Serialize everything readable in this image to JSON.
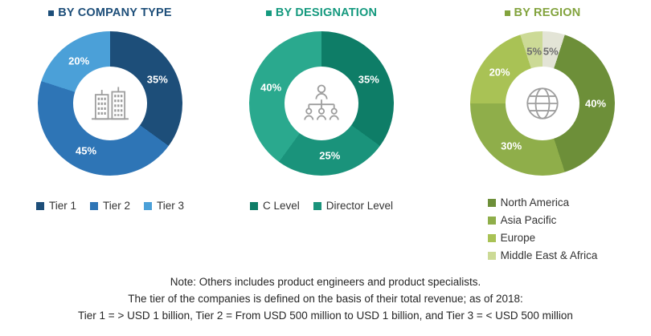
{
  "chart_data": [
    {
      "type": "pie",
      "variant": "donut",
      "title": "BY COMPANY TYPE",
      "title_color": "#1d4e79",
      "center_icon": "buildings-icon",
      "unit": "%",
      "slices": [
        {
          "label": "Tier 1",
          "value": 35,
          "color": "#1d4e79"
        },
        {
          "label": "Tier 2",
          "value": 45,
          "color": "#2e75b6"
        },
        {
          "label": "Tier 3",
          "value": 20,
          "color": "#4ba0d8"
        }
      ],
      "legend": [
        {
          "label": "Tier 1",
          "color": "#1d4e79"
        },
        {
          "label": "Tier 2",
          "color": "#2e75b6"
        },
        {
          "label": "Tier 3",
          "color": "#4ba0d8"
        }
      ],
      "legend_layout": "horizontal"
    },
    {
      "type": "pie",
      "variant": "donut",
      "title": "BY DESIGNATION",
      "title_color": "#14997e",
      "center_icon": "org-chart-icon",
      "unit": "%",
      "slices": [
        {
          "label": "C Level",
          "value": 35,
          "color": "#0e7d67"
        },
        {
          "label": "Director Level",
          "value": 25,
          "color": "#1a937b"
        },
        {
          "label": "Others",
          "value": 40,
          "color": "#2aa98e"
        }
      ],
      "legend": [
        {
          "label": "C Level",
          "color": "#0e7d67"
        },
        {
          "label": "Director Level",
          "color": "#1a937b"
        }
      ],
      "legend_layout": "horizontal"
    },
    {
      "type": "pie",
      "variant": "donut",
      "title": "BY REGION",
      "title_color": "#82a33d",
      "center_icon": "globe-icon",
      "unit": "%",
      "slices": [
        {
          "label": "",
          "value": 5,
          "color": "#e3e4d6",
          "label_color": "#6f6f6f"
        },
        {
          "label": "North America",
          "value": 40,
          "color": "#6d8f39"
        },
        {
          "label": "Asia Pacific",
          "value": 30,
          "color": "#8fae4a"
        },
        {
          "label": "Europe",
          "value": 20,
          "color": "#a9c255"
        },
        {
          "label": "Middle East & Africa",
          "value": 5,
          "color": "#ccda96",
          "label_color": "#6f6f6f"
        }
      ],
      "legend": [
        {
          "label": "North America",
          "color": "#6d8f39"
        },
        {
          "label": "Asia Pacific",
          "color": "#8fae4a"
        },
        {
          "label": "Europe",
          "color": "#a9c255"
        },
        {
          "label": "Middle East & Africa",
          "color": "#ccda96"
        }
      ],
      "legend_layout": "vertical"
    }
  ],
  "notes": [
    "Note: Others includes product engineers and product specialists.",
    "The tier of the companies is defined on the basis of their total revenue; as of 2018:",
    "Tier 1 = > USD 1 billion, Tier 2 = From USD 500 million to USD 1 billion, and Tier 3 = < USD 500 million"
  ]
}
